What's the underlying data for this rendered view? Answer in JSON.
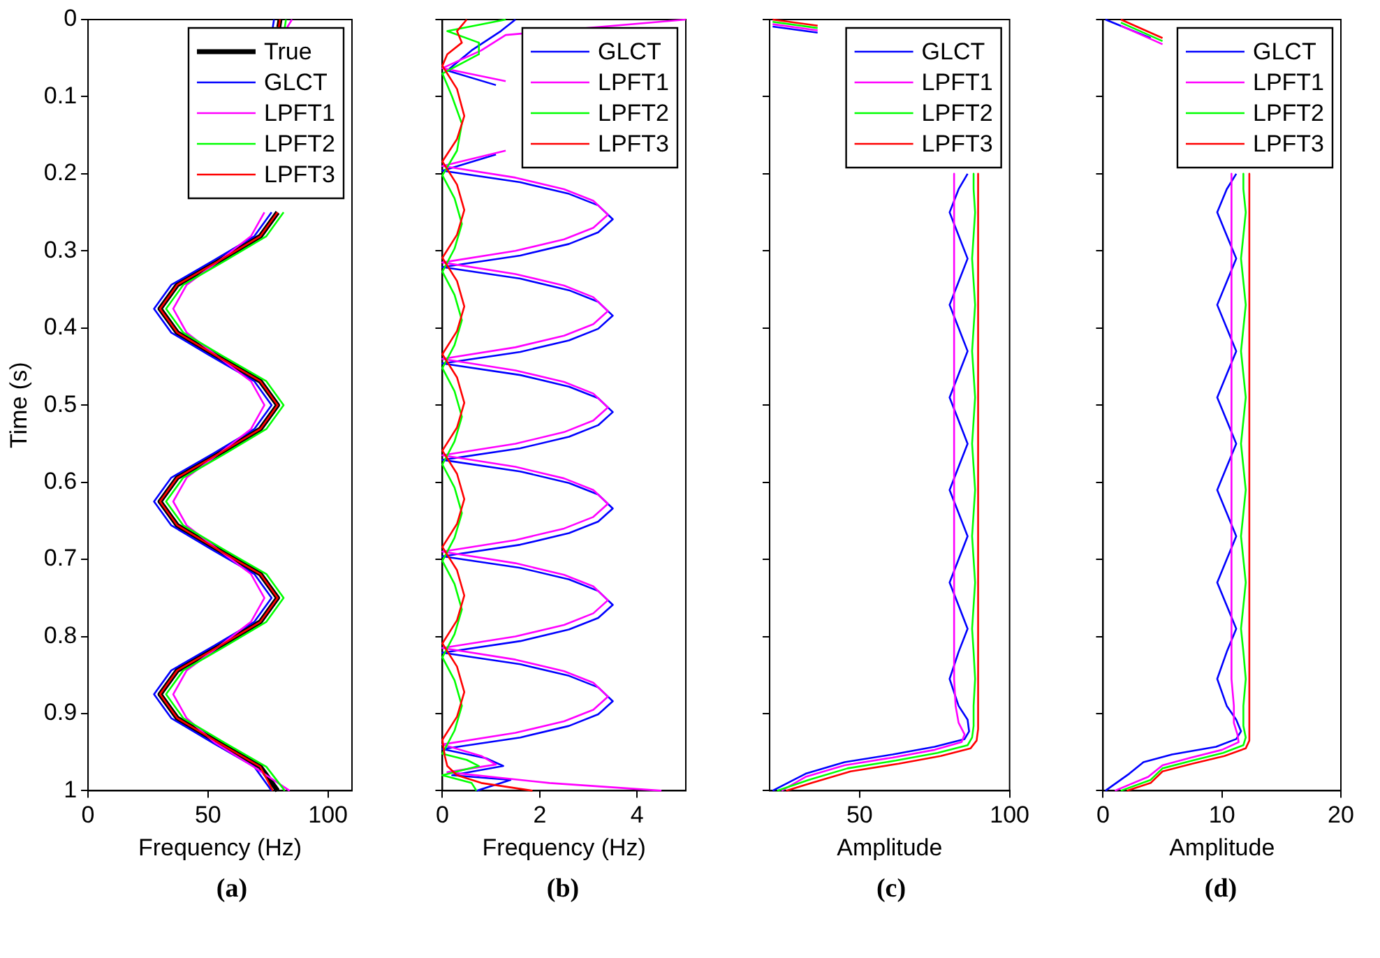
{
  "chart_data": [
    {
      "type": "line",
      "xlabel": "Frequency (Hz)",
      "ylabel": "Time (s)",
      "xlim": [
        0,
        110
      ],
      "xticks": [
        0,
        50,
        100
      ],
      "ylim": [
        1,
        0
      ],
      "yticks": [
        0,
        0.1,
        0.2,
        0.3,
        0.4,
        0.5,
        0.6,
        0.7,
        0.8,
        0.9,
        1
      ],
      "legend": "top right",
      "annotations": [
        "(a)"
      ],
      "series": [
        {
          "name": "True",
          "color": "#000000",
          "x": [
            80,
            79.5,
            null,
            79,
            71.8,
            54.5,
            37.2,
            30,
            37.2,
            54.5,
            71.8,
            79,
            71.8,
            54.5,
            37.2,
            30,
            37.2,
            54.5,
            71.8,
            79,
            71.8,
            54.5,
            37.2,
            30,
            37.2,
            54.5,
            71.8,
            79
          ],
          "values": [
            0,
            0.01,
            null,
            0.25,
            0.281,
            0.313,
            0.344,
            0.375,
            0.406,
            0.438,
            0.469,
            0.5,
            0.531,
            0.563,
            0.594,
            0.625,
            0.656,
            0.688,
            0.719,
            0.75,
            0.781,
            0.813,
            0.844,
            0.875,
            0.906,
            0.938,
            0.969,
            1
          ]
        },
        {
          "name": "GLCT",
          "color": "#0000ff",
          "x": [
            77.5,
            77,
            null,
            76.5,
            69.3,
            52,
            34.7,
            27.5,
            34.7,
            52,
            69.3,
            76.5,
            69.3,
            52,
            34.7,
            27.5,
            34.7,
            52,
            69.3,
            76.5,
            69.3,
            52,
            34.7,
            27.5,
            34.7,
            52,
            69.3,
            76.5
          ],
          "values": [
            0,
            0.01,
            null,
            0.25,
            0.281,
            0.313,
            0.344,
            0.375,
            0.406,
            0.438,
            0.469,
            0.5,
            0.531,
            0.563,
            0.594,
            0.625,
            0.656,
            0.688,
            0.719,
            0.75,
            0.781,
            0.813,
            0.844,
            0.875,
            0.906,
            0.938,
            0.969,
            1
          ]
        },
        {
          "name": "LPFT1",
          "color": "#ff00ff",
          "x": [
            85,
            83,
            null,
            73.5,
            67.9,
            54.5,
            41.1,
            35.5,
            41.1,
            54.5,
            67.9,
            73.5,
            67.9,
            54.5,
            41.1,
            35.5,
            41.1,
            54.5,
            67.9,
            73.5,
            67.9,
            54.5,
            41.1,
            35.5,
            41.1,
            53,
            69,
            84
          ],
          "values": [
            0,
            0.01,
            null,
            0.25,
            0.281,
            0.313,
            0.344,
            0.375,
            0.406,
            0.438,
            0.469,
            0.5,
            0.531,
            0.563,
            0.594,
            0.625,
            0.656,
            0.688,
            0.719,
            0.75,
            0.781,
            0.813,
            0.844,
            0.875,
            0.906,
            0.938,
            0.969,
            1
          ]
        },
        {
          "name": "LPFT2",
          "color": "#00ff00",
          "x": [
            82.5,
            82,
            null,
            81.5,
            74.3,
            57,
            39.7,
            32.5,
            39.7,
            57,
            74.3,
            81.5,
            74.3,
            57,
            39.7,
            32.5,
            39.7,
            57,
            74.3,
            81.5,
            74.3,
            57,
            39.7,
            32.5,
            39.7,
            57,
            74.3,
            82
          ],
          "values": [
            0,
            0.01,
            null,
            0.25,
            0.281,
            0.313,
            0.344,
            0.375,
            0.406,
            0.438,
            0.469,
            0.5,
            0.531,
            0.563,
            0.594,
            0.625,
            0.656,
            0.688,
            0.719,
            0.75,
            0.781,
            0.813,
            0.844,
            0.875,
            0.906,
            0.938,
            0.969,
            1
          ]
        },
        {
          "name": "LPFT3",
          "color": "#ff0000",
          "x": [
            80,
            79.5,
            null,
            79,
            71.8,
            54.5,
            37.2,
            30,
            37.2,
            54.5,
            71.8,
            79,
            71.8,
            54.5,
            37.2,
            30,
            37.2,
            54.5,
            71.8,
            79,
            71.8,
            54.5,
            37.2,
            30,
            37.2,
            54.5,
            71.8,
            77
          ],
          "values": [
            0,
            0.01,
            null,
            0.25,
            0.281,
            0.313,
            0.344,
            0.375,
            0.406,
            0.438,
            0.469,
            0.5,
            0.531,
            0.563,
            0.594,
            0.625,
            0.656,
            0.688,
            0.719,
            0.75,
            0.781,
            0.813,
            0.844,
            0.875,
            0.906,
            0.938,
            0.969,
            1
          ]
        }
      ]
    },
    {
      "type": "line",
      "xlabel": "Frequency (Hz)",
      "xlim": [
        0,
        5
      ],
      "xticks": [
        0,
        2,
        4
      ],
      "ylim": [
        1,
        0
      ],
      "yticks": [
        0,
        0.1,
        0.2,
        0.3,
        0.4,
        0.5,
        0.6,
        0.7,
        0.8,
        0.9,
        1
      ],
      "tick_labels": "x",
      "legend": "top right",
      "annotations": [
        "(b)"
      ],
      "series": [
        {
          "name": "GLCT",
          "color": "#0000ff",
          "x": [
            1.5,
            1.2,
            0.6,
            0.1,
            1.1,
            null,
            1.1,
            0,
            1.6,
            2.6,
            3.2,
            3.5,
            3.2,
            2.6,
            1.6,
            0,
            1.6,
            2.6,
            3.2,
            3.5,
            3.2,
            2.6,
            1.6,
            0,
            1.6,
            2.6,
            3.2,
            3.5,
            3.2,
            2.6,
            1.6,
            0,
            1.6,
            2.6,
            3.2,
            3.5,
            3.2,
            2.6,
            1.6,
            0,
            1.6,
            2.6,
            3.2,
            3.5,
            3.2,
            2.6,
            1.6,
            0,
            1.6,
            2.6,
            3.2,
            3.5,
            3.2,
            2.6,
            1.6,
            0,
            0.9,
            1.25,
            0.2,
            1.4,
            0.7
          ],
          "values": [
            0,
            0.015,
            0.04,
            0.066,
            0.085,
            null,
            0.175,
            0.196,
            0.211,
            0.226,
            0.241,
            0.259,
            0.276,
            0.291,
            0.306,
            0.321,
            0.336,
            0.351,
            0.366,
            0.384,
            0.401,
            0.416,
            0.431,
            0.446,
            0.461,
            0.476,
            0.491,
            0.509,
            0.526,
            0.541,
            0.556,
            0.571,
            0.586,
            0.601,
            0.616,
            0.634,
            0.651,
            0.666,
            0.681,
            0.696,
            0.711,
            0.726,
            0.741,
            0.759,
            0.776,
            0.791,
            0.806,
            0.821,
            0.836,
            0.851,
            0.866,
            0.884,
            0.901,
            0.916,
            0.931,
            0.946,
            0.958,
            0.968,
            0.98,
            0.986,
            1
          ]
        },
        {
          "name": "LPFT1",
          "color": "#ff00ff",
          "x": [
            5,
            1.3,
            0.8,
            0,
            1.3,
            null,
            1.3,
            0,
            1.5,
            2.5,
            3.1,
            3.4,
            3.1,
            2.5,
            1.5,
            0,
            1.5,
            2.5,
            3.1,
            3.4,
            3.1,
            2.5,
            1.5,
            0,
            1.5,
            2.5,
            3.1,
            3.4,
            3.1,
            2.5,
            1.5,
            0,
            1.5,
            2.5,
            3.1,
            3.4,
            3.1,
            2.5,
            1.5,
            0,
            1.5,
            2.5,
            3.1,
            3.4,
            3.1,
            2.5,
            1.5,
            0,
            1.5,
            2.5,
            3.1,
            3.4,
            3.1,
            2.5,
            1.5,
            0,
            0.8,
            1.1,
            0.1,
            2.2,
            4.5
          ],
          "values": [
            0,
            0.02,
            0.04,
            0.063,
            0.08,
            null,
            0.17,
            0.19,
            0.205,
            0.22,
            0.235,
            0.253,
            0.27,
            0.285,
            0.3,
            0.315,
            0.33,
            0.345,
            0.36,
            0.378,
            0.395,
            0.41,
            0.425,
            0.44,
            0.455,
            0.47,
            0.485,
            0.503,
            0.52,
            0.535,
            0.55,
            0.565,
            0.58,
            0.595,
            0.61,
            0.628,
            0.645,
            0.66,
            0.675,
            0.69,
            0.705,
            0.72,
            0.735,
            0.753,
            0.77,
            0.785,
            0.8,
            0.815,
            0.83,
            0.845,
            0.86,
            0.878,
            0.895,
            0.91,
            0.925,
            0.94,
            0.955,
            0.966,
            0.976,
            0.99,
            1
          ]
        },
        {
          "name": "LPFT2",
          "color": "#00ff00",
          "x": [
            1.3,
            0.1,
            0.75,
            0.75,
            0,
            0.2,
            0.4,
            0.3,
            0,
            0.25,
            0.4,
            0.25,
            0,
            0.25,
            0.4,
            0.25,
            0,
            0.25,
            0.4,
            0.25,
            0,
            0.25,
            0.4,
            0.25,
            0,
            0.25,
            0.4,
            0.25,
            0,
            0.25,
            0.4,
            0.25,
            0,
            0.5,
            0.75,
            0,
            0.6,
            0.7
          ],
          "values": [
            0,
            0.015,
            0.03,
            0.045,
            0.07,
            0.1,
            0.135,
            0.17,
            0.202,
            0.232,
            0.265,
            0.297,
            0.327,
            0.357,
            0.39,
            0.422,
            0.452,
            0.482,
            0.515,
            0.547,
            0.577,
            0.607,
            0.64,
            0.672,
            0.702,
            0.732,
            0.765,
            0.797,
            0.827,
            0.857,
            0.89,
            0.922,
            0.952,
            0.96,
            0.968,
            0.98,
            0.99,
            1
          ]
        },
        {
          "name": "LPFT3",
          "color": "#ff0000",
          "x": [
            0.5,
            0.3,
            0.4,
            0.1,
            0,
            0.3,
            0.45,
            0.3,
            0,
            0.3,
            0.45,
            0.3,
            0,
            0.3,
            0.45,
            0.3,
            0,
            0.3,
            0.45,
            0.3,
            0,
            0.3,
            0.45,
            0.3,
            0,
            0.3,
            0.45,
            0.3,
            0,
            0.3,
            0.45,
            0.3,
            0,
            0.05,
            0.1,
            0.3,
            0.8,
            1.85
          ],
          "values": [
            0,
            0.015,
            0.03,
            0.045,
            0.06,
            0.09,
            0.125,
            0.155,
            0.184,
            0.214,
            0.247,
            0.279,
            0.309,
            0.339,
            0.372,
            0.404,
            0.434,
            0.464,
            0.497,
            0.529,
            0.559,
            0.589,
            0.622,
            0.654,
            0.684,
            0.714,
            0.747,
            0.779,
            0.809,
            0.839,
            0.872,
            0.904,
            0.934,
            0.955,
            0.968,
            0.98,
            0.99,
            1
          ]
        }
      ]
    },
    {
      "type": "line",
      "xlabel": "Amplitude",
      "xlim": [
        20,
        100
      ],
      "xticks": [
        50,
        100
      ],
      "ylim": [
        1,
        0
      ],
      "yticks": [
        0,
        0.1,
        0.2,
        0.3,
        0.4,
        0.5,
        0.6,
        0.7,
        0.8,
        0.9,
        1
      ],
      "tick_labels": "x",
      "legend": "top right",
      "annotations": [
        "(c)"
      ],
      "series": [
        {
          "name": "GLCT",
          "color": "#0000ff",
          "x": [
            21,
            36,
            null,
            86,
            83,
            80,
            83,
            86,
            83,
            80,
            83,
            86,
            83,
            80,
            83,
            86,
            83,
            80,
            83,
            86,
            83,
            80,
            83,
            86,
            83,
            80,
            83,
            86,
            86.5,
            85,
            75,
            61,
            45,
            32,
            21
          ],
          "values": [
            0.009,
            0.017,
            null,
            0.2,
            0.22,
            0.25,
            0.28,
            0.31,
            0.34,
            0.37,
            0.4,
            0.43,
            0.46,
            0.49,
            0.52,
            0.55,
            0.58,
            0.61,
            0.64,
            0.67,
            0.7,
            0.73,
            0.76,
            0.79,
            0.82,
            0.855,
            0.89,
            0.908,
            0.923,
            0.933,
            0.943,
            0.953,
            0.963,
            0.978,
            1
          ]
        },
        {
          "name": "LPFT1",
          "color": "#ff00ff",
          "x": [
            21,
            36,
            null,
            81.5,
            81.5,
            81.5,
            81.5,
            81.5,
            81.5,
            81.5,
            81.5,
            81.5,
            81.5,
            81.5,
            81.5,
            81.5,
            81.5,
            81.5,
            81.5,
            81.5,
            81.5,
            81.5,
            81.5,
            81.5,
            81.5,
            81.5,
            82,
            83,
            85,
            84,
            75,
            61,
            45,
            32,
            24
          ],
          "values": [
            0.006,
            0.014,
            null,
            0.2,
            0.22,
            0.25,
            0.28,
            0.31,
            0.34,
            0.37,
            0.4,
            0.43,
            0.46,
            0.49,
            0.52,
            0.55,
            0.58,
            0.61,
            0.64,
            0.67,
            0.7,
            0.73,
            0.76,
            0.79,
            0.82,
            0.855,
            0.89,
            0.912,
            0.927,
            0.937,
            0.947,
            0.957,
            0.967,
            0.982,
            1
          ]
        },
        {
          "name": "LPFT2",
          "color": "#00ff00",
          "x": [
            21,
            36,
            null,
            88,
            88,
            88.5,
            88,
            87.5,
            88,
            88.5,
            88,
            87.5,
            88,
            88.5,
            88,
            87.5,
            88,
            88.5,
            88,
            87.5,
            88,
            88.5,
            88,
            87.5,
            88,
            88.5,
            88,
            88,
            87.5,
            86,
            76,
            62,
            46,
            33,
            22.5
          ],
          "values": [
            0.003,
            0.011,
            null,
            0.2,
            0.22,
            0.25,
            0.28,
            0.31,
            0.34,
            0.37,
            0.4,
            0.43,
            0.46,
            0.49,
            0.52,
            0.55,
            0.58,
            0.61,
            0.64,
            0.67,
            0.7,
            0.73,
            0.76,
            0.79,
            0.82,
            0.855,
            0.89,
            0.916,
            0.931,
            0.941,
            0.951,
            0.961,
            0.971,
            0.986,
            1
          ]
        },
        {
          "name": "LPFT3",
          "color": "#ff0000",
          "x": [
            21,
            36,
            null,
            89.5,
            89.5,
            89.5,
            89.5,
            89.5,
            89.5,
            89.5,
            89.5,
            89.5,
            89.5,
            89.5,
            89.5,
            89.5,
            89.5,
            89.5,
            89.5,
            89.5,
            89.5,
            89.5,
            89.5,
            89.5,
            89.5,
            89.5,
            89.5,
            89.5,
            89,
            87,
            77,
            63,
            47,
            34,
            25.5
          ],
          "values": [
            0,
            0.008,
            null,
            0.2,
            0.22,
            0.25,
            0.28,
            0.31,
            0.34,
            0.37,
            0.4,
            0.43,
            0.46,
            0.49,
            0.52,
            0.55,
            0.58,
            0.61,
            0.64,
            0.67,
            0.7,
            0.73,
            0.76,
            0.79,
            0.82,
            0.855,
            0.89,
            0.92,
            0.935,
            0.945,
            0.955,
            0.965,
            0.975,
            0.99,
            1
          ]
        }
      ]
    },
    {
      "type": "line",
      "xlabel": "Amplitude",
      "xlim": [
        0,
        20
      ],
      "xticks": [
        0,
        10,
        20
      ],
      "ylim": [
        1,
        0
      ],
      "yticks": [
        0,
        0.1,
        0.2,
        0.3,
        0.4,
        0.5,
        0.6,
        0.7,
        0.8,
        0.9,
        1
      ],
      "tick_labels": "x",
      "legend": "top right",
      "annotations": [
        "(d)"
      ],
      "series": [
        {
          "name": "GLCT",
          "color": "#0000ff",
          "x": [
            0.2,
            4,
            null,
            11.2,
            10.4,
            9.6,
            10.4,
            11.2,
            10.4,
            9.6,
            10.4,
            11.2,
            10.4,
            9.6,
            10.4,
            11.2,
            10.4,
            9.6,
            10.4,
            11.2,
            10.4,
            9.6,
            10.4,
            11.2,
            10.4,
            9.6,
            10.4,
            11.2,
            11.6,
            11.2,
            9.5,
            5.8,
            3.4,
            2.2,
            0.2
          ],
          "values": [
            0,
            0.024,
            null,
            0.2,
            0.22,
            0.25,
            0.28,
            0.31,
            0.34,
            0.37,
            0.4,
            0.43,
            0.46,
            0.49,
            0.52,
            0.55,
            0.58,
            0.61,
            0.64,
            0.67,
            0.7,
            0.73,
            0.76,
            0.79,
            0.82,
            0.855,
            0.89,
            0.908,
            0.923,
            0.933,
            0.943,
            0.953,
            0.963,
            0.978,
            1
          ]
        },
        {
          "name": "LPFT1",
          "color": "#ff00ff",
          "x": [
            1.5,
            5,
            null,
            10.8,
            10.8,
            10.8,
            10.8,
            10.8,
            10.8,
            10.8,
            10.8,
            10.8,
            10.8,
            10.8,
            10.8,
            10.8,
            10.8,
            10.8,
            10.8,
            10.8,
            10.8,
            10.8,
            10.8,
            10.8,
            10.8,
            10.8,
            11,
            11,
            11.3,
            11.4,
            10,
            7.4,
            5,
            3.8,
            1
          ],
          "values": [
            0.008,
            0.032,
            null,
            0.2,
            0.22,
            0.25,
            0.28,
            0.31,
            0.34,
            0.37,
            0.4,
            0.43,
            0.46,
            0.49,
            0.52,
            0.55,
            0.58,
            0.61,
            0.64,
            0.67,
            0.7,
            0.73,
            0.76,
            0.79,
            0.82,
            0.855,
            0.89,
            0.912,
            0.927,
            0.937,
            0.947,
            0.957,
            0.967,
            0.982,
            1
          ]
        },
        {
          "name": "LPFT2",
          "color": "#00ff00",
          "x": [
            1.5,
            5,
            null,
            11.8,
            11.8,
            12,
            11.8,
            11.6,
            11.8,
            12,
            11.8,
            11.6,
            11.8,
            12,
            11.8,
            11.6,
            11.8,
            12,
            11.8,
            11.6,
            11.8,
            12,
            11.8,
            11.6,
            11.8,
            12,
            11.8,
            11.8,
            12,
            11.8,
            10.1,
            7.5,
            5,
            4,
            1.5
          ],
          "values": [
            0.004,
            0.028,
            null,
            0.2,
            0.22,
            0.25,
            0.28,
            0.31,
            0.34,
            0.37,
            0.4,
            0.43,
            0.46,
            0.49,
            0.52,
            0.55,
            0.58,
            0.61,
            0.64,
            0.67,
            0.7,
            0.73,
            0.76,
            0.79,
            0.82,
            0.855,
            0.89,
            0.916,
            0.931,
            0.941,
            0.951,
            0.961,
            0.971,
            0.986,
            1
          ]
        },
        {
          "name": "LPFT3",
          "color": "#ff0000",
          "x": [
            1.5,
            5,
            null,
            12.3,
            12.3,
            12.3,
            12.3,
            12.3,
            12.3,
            12.3,
            12.3,
            12.3,
            12.3,
            12.3,
            12.3,
            12.3,
            12.3,
            12.3,
            12.3,
            12.3,
            12.3,
            12.3,
            12.3,
            12.3,
            12.3,
            12.3,
            12.3,
            12.3,
            12.3,
            12,
            10.2,
            7.5,
            5,
            4,
            2
          ],
          "values": [
            0,
            0.024,
            null,
            0.2,
            0.22,
            0.25,
            0.28,
            0.31,
            0.34,
            0.37,
            0.4,
            0.43,
            0.46,
            0.49,
            0.52,
            0.55,
            0.58,
            0.61,
            0.64,
            0.67,
            0.7,
            0.73,
            0.76,
            0.79,
            0.82,
            0.855,
            0.89,
            0.92,
            0.935,
            0.945,
            0.955,
            0.965,
            0.975,
            0.99,
            1
          ]
        }
      ]
    }
  ]
}
